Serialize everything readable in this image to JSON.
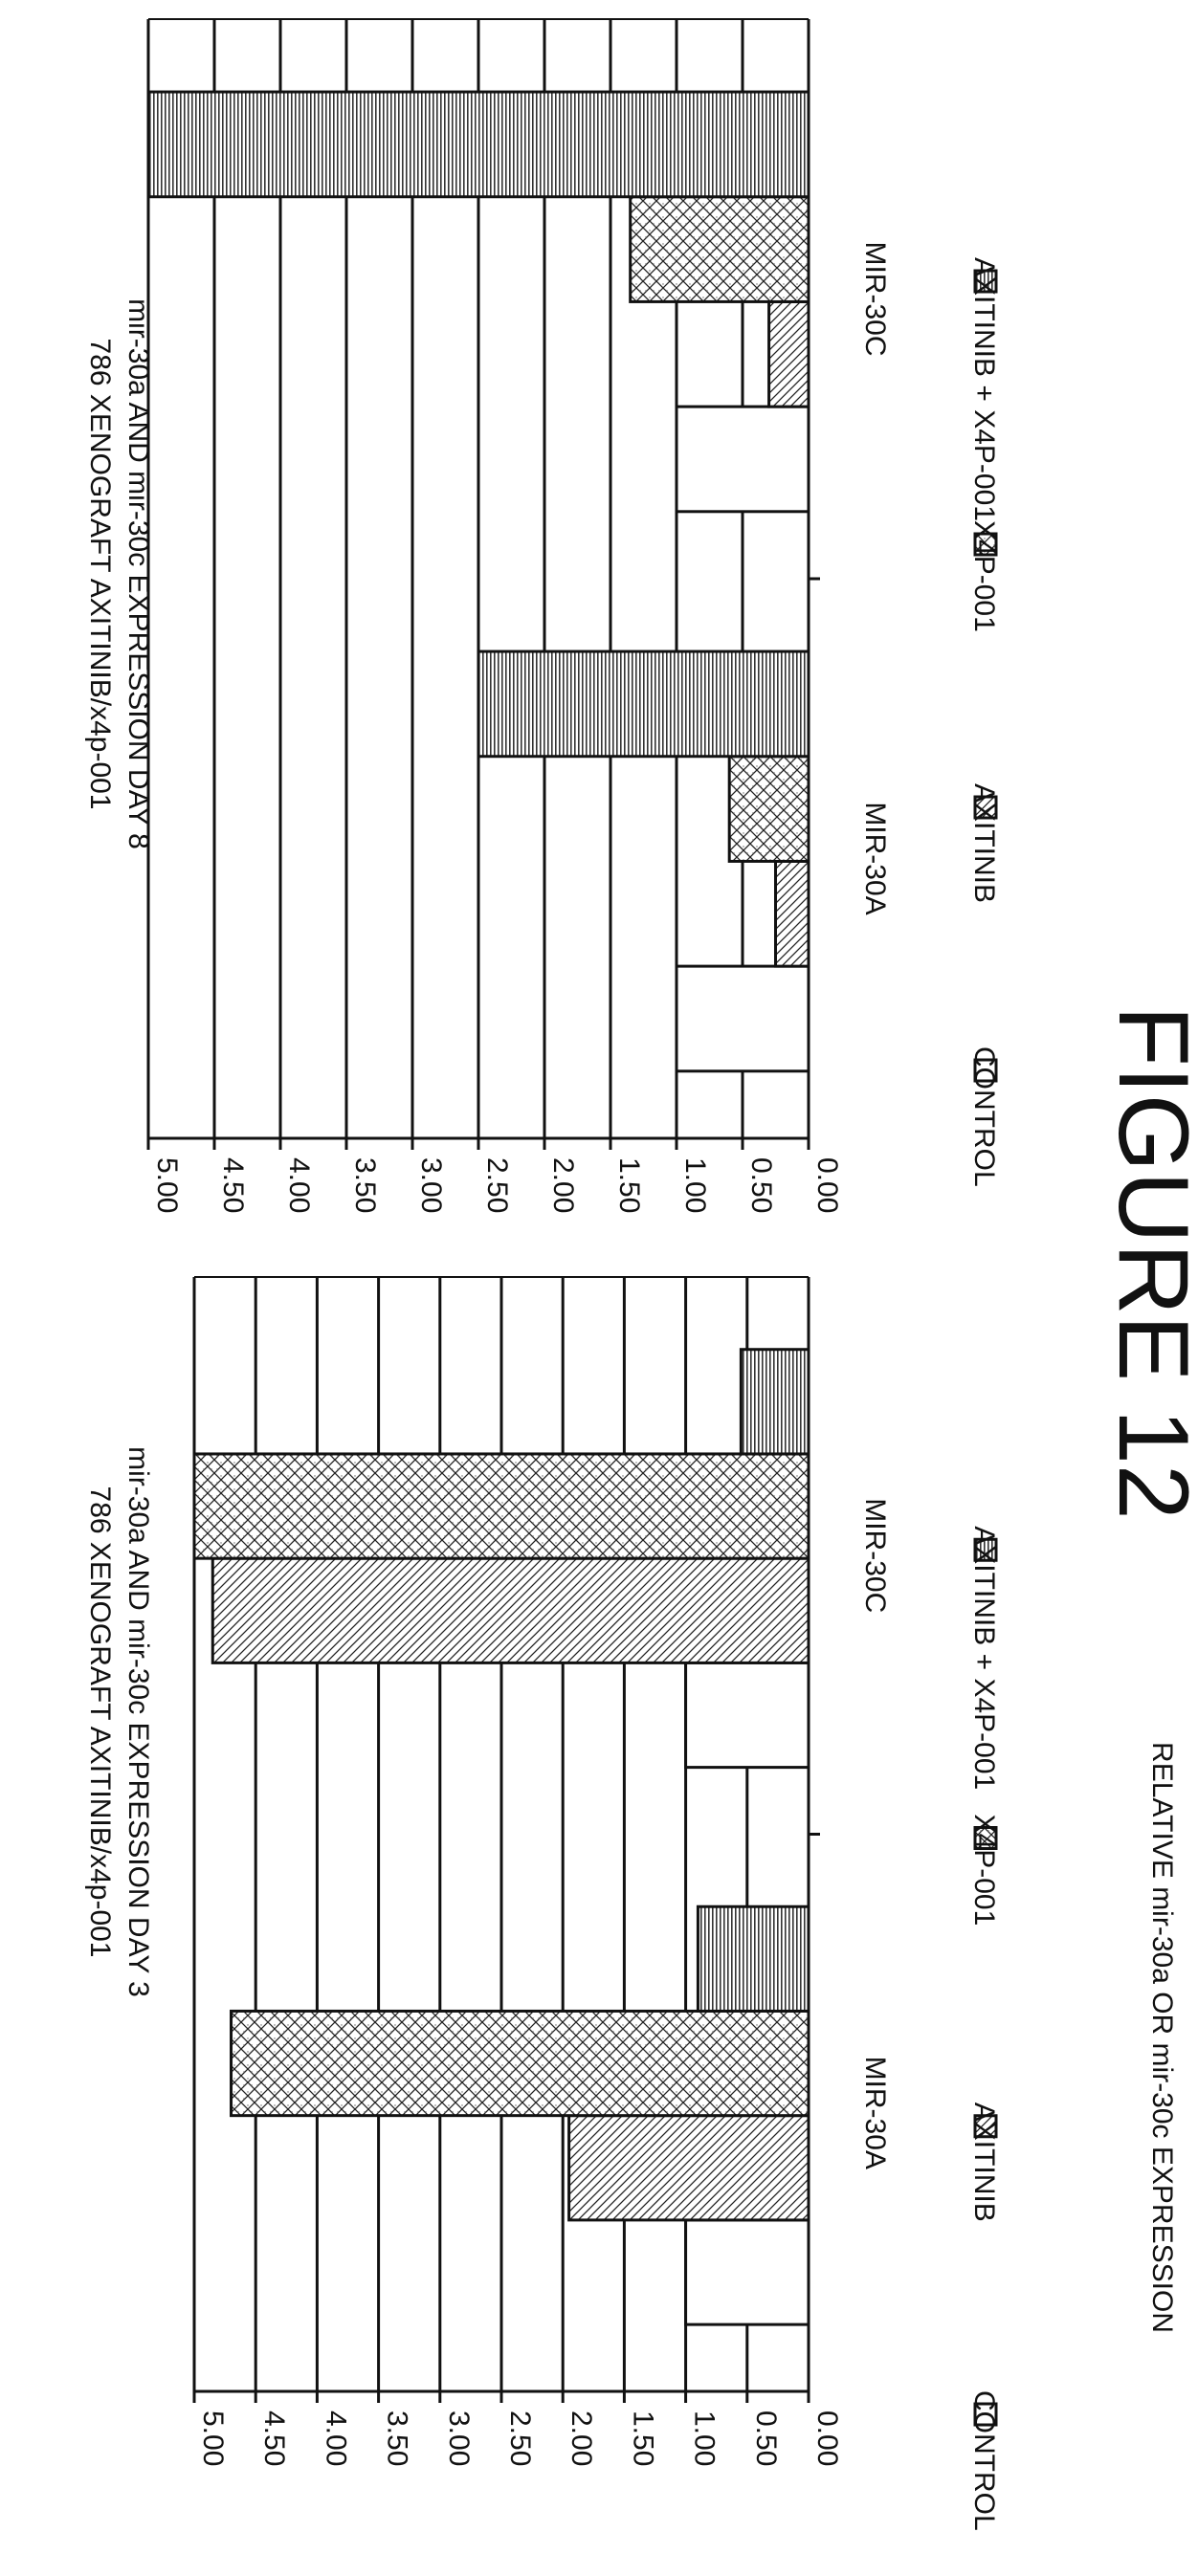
{
  "figure_label": "FIGURE 12",
  "y_axis_label": "RELATIVE mir-30a OR mir-30c EXPRESSION",
  "series_names": [
    "CONTROL",
    "AXITINIB",
    "X4P-001",
    "AXITINIB + X4P-001"
  ],
  "chart_data": [
    {
      "type": "bar",
      "title_line1": "786 XENOGRAFT AXITINIB/x4p-001",
      "title_line2": "mir-30a AND mir-30c EXPRESSION DAY 3",
      "categories": [
        "MIR-30A",
        "MIR-30C"
      ],
      "ylim": [
        0,
        5
      ],
      "yticks": [
        "0.00",
        "0.50",
        "1.00",
        "1.50",
        "2.00",
        "2.50",
        "3.00",
        "3.50",
        "4.00",
        "4.50",
        "5.00"
      ],
      "grid": true,
      "legend": "bottom",
      "series": [
        {
          "name": "CONTROL",
          "values": [
            1.0,
            1.0
          ]
        },
        {
          "name": "AXITINIB",
          "values": [
            1.95,
            4.85
          ]
        },
        {
          "name": "X4P-001",
          "values": [
            4.7,
            5.0
          ]
        },
        {
          "name": "AXITINIB + X4P-001",
          "values": [
            0.9,
            0.55
          ]
        }
      ]
    },
    {
      "type": "bar",
      "title_line1": "786 XENOGRAFT AXITINIB/x4p-001",
      "title_line2": "mir-30a AND mir-30c EXPRESSION DAY 8",
      "categories": [
        "MIR-30A",
        "MIR-30C"
      ],
      "ylim": [
        0,
        5
      ],
      "yticks": [
        "0.00",
        "0.50",
        "1.00",
        "1.50",
        "2.00",
        "2.50",
        "3.00",
        "3.50",
        "4.00",
        "4.50",
        "5.00"
      ],
      "grid": true,
      "legend": "bottom",
      "series": [
        {
          "name": "CONTROL",
          "values": [
            1.0,
            1.0
          ]
        },
        {
          "name": "AXITINIB",
          "values": [
            0.25,
            0.3
          ]
        },
        {
          "name": "X4P-001",
          "values": [
            0.6,
            1.35
          ]
        },
        {
          "name": "AXITINIB + X4P-001",
          "values": [
            2.5,
            5.0
          ]
        }
      ]
    }
  ]
}
